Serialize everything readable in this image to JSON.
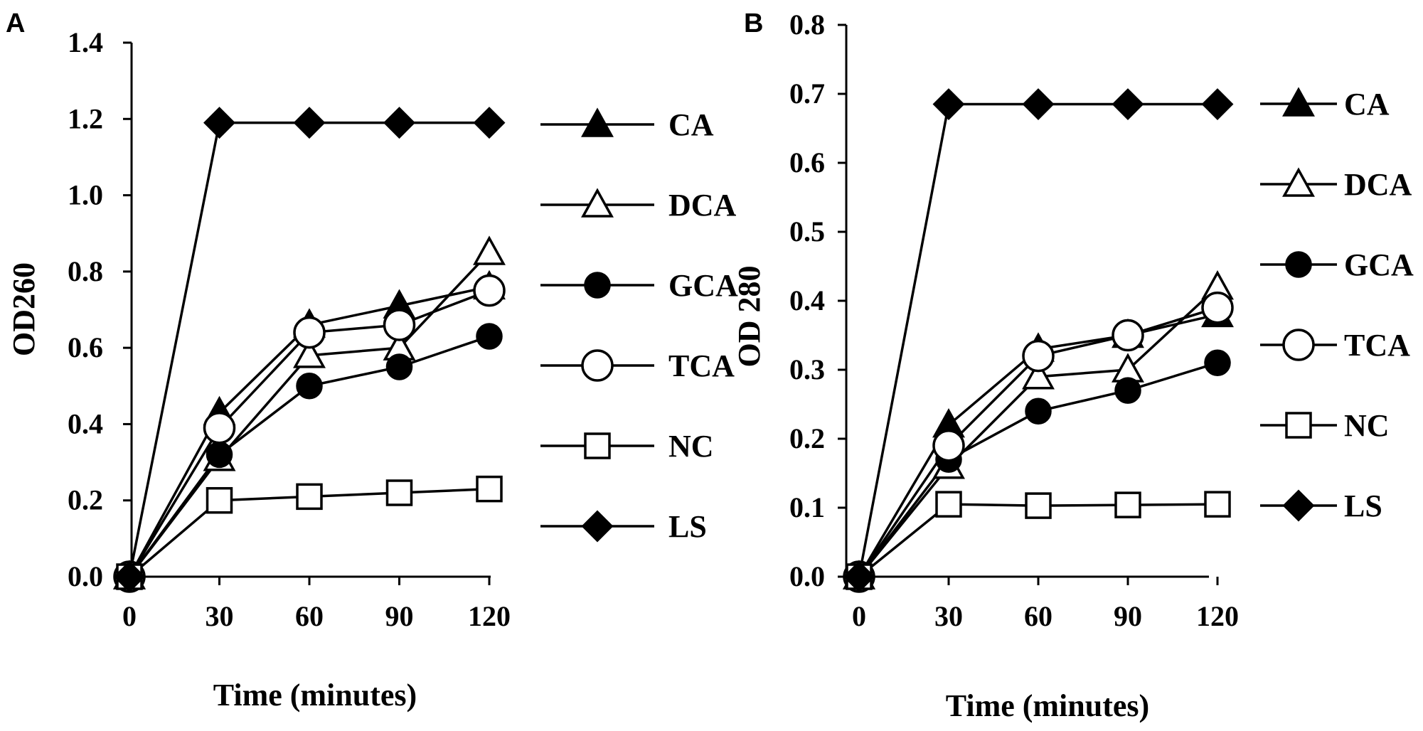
{
  "chart_data": [
    {
      "type": "line",
      "panel": "A",
      "xlabel": "Time (minutes)",
      "ylabel": "OD260",
      "x": [
        0,
        30,
        60,
        90,
        120
      ],
      "xticks": [
        "0",
        "30",
        "60",
        "90",
        "120"
      ],
      "ylim": [
        0,
        1.4
      ],
      "yticks": [
        "0.0",
        "0.2",
        "0.4",
        "0.6",
        "0.8",
        "1.0",
        "1.2",
        "1.4"
      ],
      "legend_position": "right",
      "series": [
        {
          "name": "CA",
          "marker": "triangle-filled",
          "values": [
            0.0,
            0.43,
            0.66,
            0.71,
            0.76
          ]
        },
        {
          "name": "DCA",
          "marker": "triangle-open",
          "values": [
            0.0,
            0.31,
            0.58,
            0.6,
            0.85
          ]
        },
        {
          "name": "GCA",
          "marker": "circle-filled",
          "values": [
            0.0,
            0.32,
            0.5,
            0.55,
            0.63
          ]
        },
        {
          "name": "TCA",
          "marker": "circle-open",
          "values": [
            0.0,
            0.39,
            0.64,
            0.66,
            0.75
          ]
        },
        {
          "name": "NC",
          "marker": "square-open",
          "values": [
            0.0,
            0.2,
            0.21,
            0.22,
            0.23
          ]
        },
        {
          "name": "LS",
          "marker": "diamond-filled",
          "values": [
            0.0,
            1.19,
            1.19,
            1.19,
            1.19
          ]
        }
      ]
    },
    {
      "type": "line",
      "panel": "B",
      "xlabel": "Time (minutes)",
      "ylabel": "OD 280",
      "x": [
        0,
        30,
        60,
        90,
        120
      ],
      "xticks": [
        "0",
        "30",
        "60",
        "90",
        "120"
      ],
      "ylim": [
        0,
        0.8
      ],
      "yticks": [
        "0.0",
        "0.1",
        "0.2",
        "0.3",
        "0.4",
        "0.5",
        "0.6",
        "0.7",
        "0.8"
      ],
      "legend_position": "right",
      "series": [
        {
          "name": "CA",
          "marker": "triangle-filled",
          "values": [
            0.0,
            0.22,
            0.33,
            0.35,
            0.38
          ]
        },
        {
          "name": "DCA",
          "marker": "triangle-open",
          "values": [
            0.0,
            0.16,
            0.29,
            0.3,
            0.42
          ]
        },
        {
          "name": "GCA",
          "marker": "circle-filled",
          "values": [
            0.0,
            0.17,
            0.24,
            0.27,
            0.31
          ]
        },
        {
          "name": "TCA",
          "marker": "circle-open",
          "values": [
            0.0,
            0.19,
            0.32,
            0.35,
            0.39
          ]
        },
        {
          "name": "NC",
          "marker": "square-open",
          "values": [
            0.0,
            0.105,
            0.103,
            0.104,
            0.105
          ]
        },
        {
          "name": "LS",
          "marker": "diamond-filled",
          "values": [
            0.0,
            0.685,
            0.685,
            0.685,
            0.685
          ]
        }
      ]
    }
  ],
  "colors": {
    "ink": "#000000",
    "background": "#ffffff"
  }
}
